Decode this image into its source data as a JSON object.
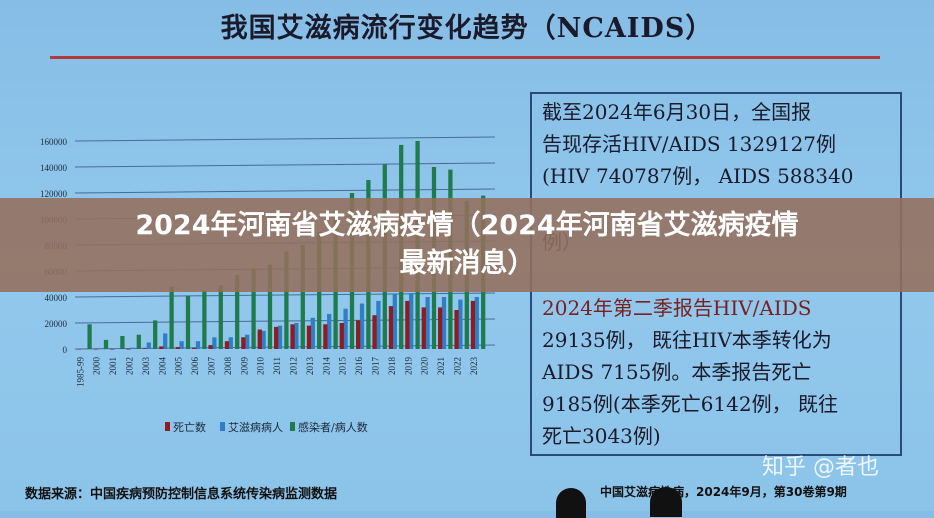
{
  "slide": {
    "title": "我国艾滋病流行变化趋势（NCAIDS）",
    "textbox_lines": [
      "截至2024年6月30日，全国报",
      "告现存活HIV/AIDS 1329127例",
      "(HIV 740787例， AIDS 588340",
      "例）",
      "2024年第二季报告HIV/AIDS",
      "29135例， 既往HIV本季转化为",
      "AIDS 7155例。本季报告死亡",
      "9185例(本季死亡6142例， 既往",
      "死亡3043例)"
    ],
    "source": "数据来源：中国疾病预防控制信息系统传染病监测数据",
    "journal": "中国艾滋病性病，2024年9月，第30卷第9期"
  },
  "overlay": {
    "line1": "2024年河南省艾滋病疫情（2024年河南省艾滋病疫情",
    "line2": "最新消息）"
  },
  "watermark": "知乎 @者也",
  "colors": {
    "deaths": "#8e1c22",
    "aids": "#2f7fc4",
    "infected": "#1f7a4e",
    "background": "#8ec5e9"
  },
  "chart_data": {
    "type": "bar",
    "title": "",
    "xlabel": "",
    "ylabel": "",
    "ylim": [
      0,
      160000
    ],
    "yticks": [
      "0",
      "20000",
      "40000",
      "60000",
      "80000",
      "100000",
      "120000",
      "140000",
      "160000"
    ],
    "categories": [
      "1985-99",
      "2000",
      "2001",
      "2002",
      "2003",
      "2004",
      "2005",
      "2006",
      "2007",
      "2008",
      "2009",
      "2010",
      "2011",
      "2012",
      "2013",
      "2014",
      "2015",
      "2016",
      "2017",
      "2018",
      "2019",
      "2020",
      "2021",
      "2022",
      "2023"
    ],
    "series": [
      {
        "name": "死亡数",
        "values": [
          0,
          0,
          0,
          0,
          500,
          2000,
          1500,
          1000,
          3000,
          6000,
          9000,
          15000,
          17000,
          19000,
          18000,
          19000,
          20000,
          22000,
          26000,
          33000,
          37000,
          32000,
          32000,
          30000,
          37000
        ]
      },
      {
        "name": "艾滋病病人",
        "values": [
          300,
          500,
          600,
          1000,
          5000,
          12000,
          6000,
          6000,
          9000,
          9000,
          11000,
          14000,
          18000,
          20000,
          24000,
          27000,
          31000,
          35000,
          37000,
          42000,
          43000,
          40000,
          40000,
          38000,
          40000
        ]
      },
      {
        "name": "感染者/病人数",
        "values": [
          19000,
          7000,
          10000,
          11000,
          22000,
          48000,
          41000,
          45000,
          49000,
          57000,
          62000,
          65000,
          75000,
          80000,
          90000,
          107000,
          120000,
          130000,
          142000,
          157000,
          160000,
          140000,
          138000,
          114000,
          118000
        ]
      }
    ],
    "legend": "bottom",
    "grid": true
  }
}
